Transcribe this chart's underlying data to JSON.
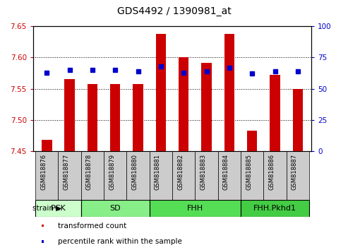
{
  "title": "GDS4492 / 1390981_at",
  "samples": [
    "GSM818876",
    "GSM818877",
    "GSM818878",
    "GSM818879",
    "GSM818880",
    "GSM818881",
    "GSM818882",
    "GSM818883",
    "GSM818884",
    "GSM818885",
    "GSM818886",
    "GSM818887"
  ],
  "bar_values": [
    7.468,
    7.565,
    7.558,
    7.558,
    7.558,
    7.638,
    7.6,
    7.591,
    7.638,
    7.483,
    7.572,
    7.55
  ],
  "bar_base": 7.45,
  "percentile_values": [
    63,
    65,
    65,
    65,
    64,
    68,
    63,
    64,
    67,
    62,
    64,
    64
  ],
  "ylim_left": [
    7.45,
    7.65
  ],
  "ylim_right": [
    0,
    100
  ],
  "yticks_left": [
    7.45,
    7.5,
    7.55,
    7.6,
    7.65
  ],
  "yticks_right": [
    0,
    25,
    50,
    75,
    100
  ],
  "bar_color": "#cc0000",
  "percentile_color": "#0000cc",
  "groups": [
    {
      "label": "PCK",
      "start": 0,
      "end": 2,
      "color": "#ccffcc"
    },
    {
      "label": "SD",
      "start": 2,
      "end": 5,
      "color": "#88ee88"
    },
    {
      "label": "FHH",
      "start": 5,
      "end": 9,
      "color": "#55dd55"
    },
    {
      "label": "FHH.Pkhd1",
      "start": 9,
      "end": 12,
      "color": "#44cc44"
    }
  ],
  "tick_label_color_left": "#cc0000",
  "tick_label_color_right": "#0000cc",
  "bg_plot": "#ffffff",
  "xtick_bg": "#cccccc",
  "legend_items": [
    {
      "label": "transformed count",
      "color": "#cc0000"
    },
    {
      "label": "percentile rank within the sample",
      "color": "#0000cc"
    }
  ],
  "group_border_color": "#000000",
  "bar_width": 0.45
}
